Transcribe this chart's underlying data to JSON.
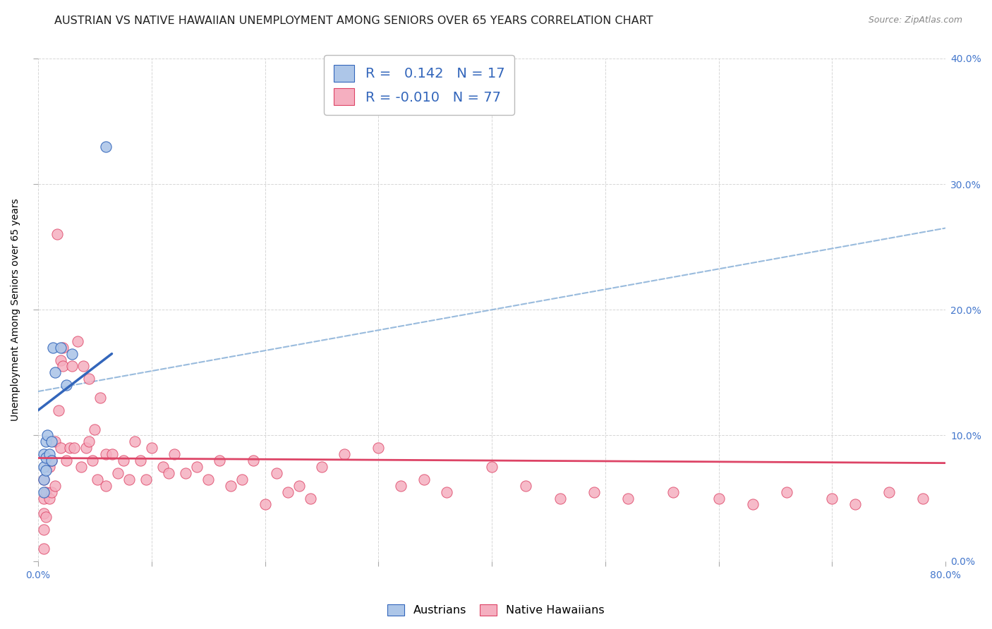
{
  "title": "AUSTRIAN VS NATIVE HAWAIIAN UNEMPLOYMENT AMONG SENIORS OVER 65 YEARS CORRELATION CHART",
  "source": "Source: ZipAtlas.com",
  "ylabel": "Unemployment Among Seniors over 65 years",
  "xticklabels": [
    "0.0%",
    "",
    "",
    "",
    "",
    "",
    "",
    "",
    "80.0%"
  ],
  "xticks": [
    0,
    0.1,
    0.2,
    0.3,
    0.4,
    0.5,
    0.6,
    0.7,
    0.8
  ],
  "yticklabels": [
    "0.0%",
    "10.0%",
    "20.0%",
    "30.0%",
    "40.0%"
  ],
  "yticks": [
    0,
    0.1,
    0.2,
    0.3,
    0.4
  ],
  "xlim": [
    0,
    0.8
  ],
  "ylim": [
    0,
    0.4
  ],
  "legend_r_austrians": "0.142",
  "legend_n_austrians": "17",
  "legend_r_hawaiians": "-0.010",
  "legend_n_hawaiians": "77",
  "austrians_color": "#adc6e8",
  "hawaiians_color": "#f5afc0",
  "trend_austrians_color": "#3366bb",
  "trend_hawaiians_color": "#dd4466",
  "trend_dashed_color": "#99bbdd",
  "background_color": "#ffffff",
  "grid_color": "#cccccc",
  "title_fontsize": 11.5,
  "axis_label_fontsize": 10,
  "tick_fontsize": 10,
  "scatter_size": 120,
  "austrians_x": [
    0.005,
    0.005,
    0.005,
    0.005,
    0.007,
    0.007,
    0.007,
    0.008,
    0.01,
    0.012,
    0.012,
    0.013,
    0.015,
    0.02,
    0.025,
    0.03,
    0.06
  ],
  "austrians_y": [
    0.085,
    0.075,
    0.065,
    0.055,
    0.095,
    0.082,
    0.072,
    0.1,
    0.085,
    0.095,
    0.08,
    0.17,
    0.15,
    0.17,
    0.14,
    0.165,
    0.33
  ],
  "hawaiians_x": [
    0.005,
    0.005,
    0.005,
    0.005,
    0.005,
    0.007,
    0.007,
    0.01,
    0.01,
    0.012,
    0.012,
    0.015,
    0.015,
    0.017,
    0.018,
    0.02,
    0.02,
    0.022,
    0.022,
    0.025,
    0.028,
    0.03,
    0.032,
    0.035,
    0.038,
    0.04,
    0.042,
    0.045,
    0.045,
    0.048,
    0.05,
    0.052,
    0.055,
    0.06,
    0.06,
    0.065,
    0.07,
    0.075,
    0.08,
    0.085,
    0.09,
    0.095,
    0.1,
    0.11,
    0.115,
    0.12,
    0.13,
    0.14,
    0.15,
    0.16,
    0.17,
    0.18,
    0.19,
    0.2,
    0.21,
    0.22,
    0.23,
    0.24,
    0.25,
    0.27,
    0.3,
    0.32,
    0.34,
    0.36,
    0.4,
    0.43,
    0.46,
    0.49,
    0.52,
    0.56,
    0.6,
    0.63,
    0.66,
    0.7,
    0.72,
    0.75,
    0.78
  ],
  "hawaiians_y": [
    0.065,
    0.05,
    0.038,
    0.025,
    0.01,
    0.055,
    0.035,
    0.075,
    0.05,
    0.08,
    0.055,
    0.095,
    0.06,
    0.26,
    0.12,
    0.16,
    0.09,
    0.17,
    0.155,
    0.08,
    0.09,
    0.155,
    0.09,
    0.175,
    0.075,
    0.155,
    0.09,
    0.145,
    0.095,
    0.08,
    0.105,
    0.065,
    0.13,
    0.085,
    0.06,
    0.085,
    0.07,
    0.08,
    0.065,
    0.095,
    0.08,
    0.065,
    0.09,
    0.075,
    0.07,
    0.085,
    0.07,
    0.075,
    0.065,
    0.08,
    0.06,
    0.065,
    0.08,
    0.045,
    0.07,
    0.055,
    0.06,
    0.05,
    0.075,
    0.085,
    0.09,
    0.06,
    0.065,
    0.055,
    0.075,
    0.06,
    0.05,
    0.055,
    0.05,
    0.055,
    0.05,
    0.045,
    0.055,
    0.05,
    0.045,
    0.055,
    0.05
  ],
  "austrians_trend_x0": 0.0,
  "austrians_trend_y0": 0.12,
  "austrians_trend_x1": 0.065,
  "austrians_trend_y1": 0.165,
  "dashed_trend_x0": 0.0,
  "dashed_trend_y0": 0.135,
  "dashed_trend_x1": 0.8,
  "dashed_trend_y1": 0.265,
  "hawaiians_trend_x0": 0.0,
  "hawaiians_trend_y0": 0.082,
  "hawaiians_trend_x1": 0.8,
  "hawaiians_trend_y1": 0.078
}
